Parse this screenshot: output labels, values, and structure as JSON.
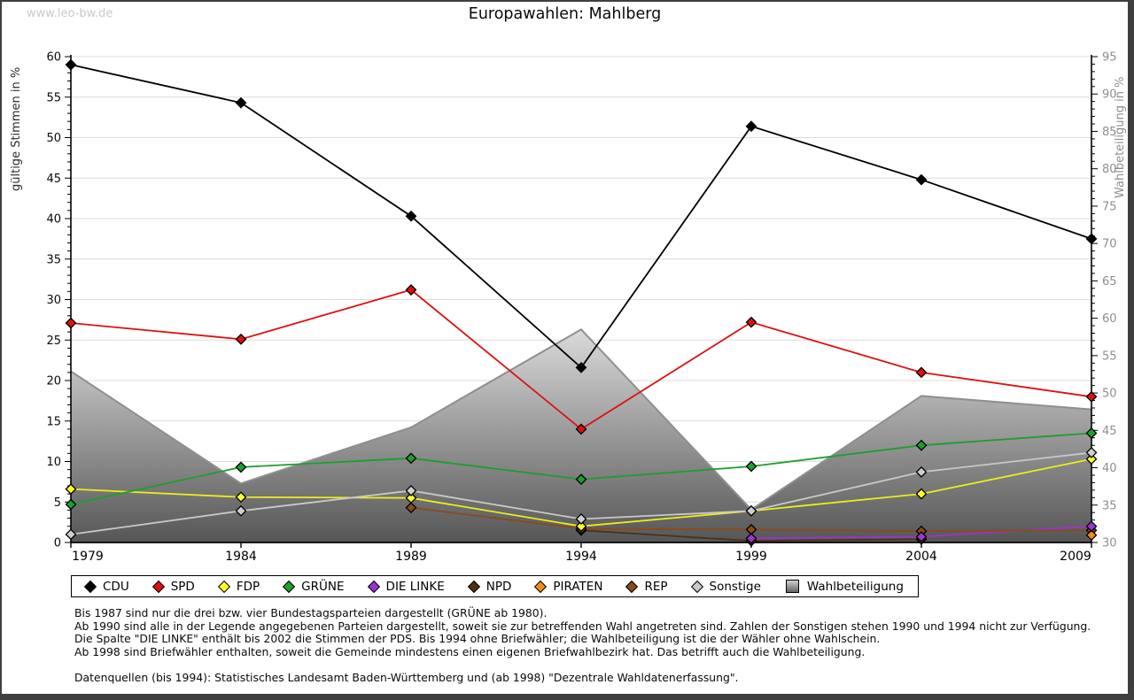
{
  "watermark": "www.leo-bw.de",
  "title": "Europawahlen: Mahlberg",
  "axes": {
    "left_title": "gültige Stimmen in %",
    "right_title": "Wahlbeteiligung in %"
  },
  "legend": [
    {
      "id": "cdu",
      "label": "CDU",
      "color": "#000000",
      "shape": "diamond"
    },
    {
      "id": "spd",
      "label": "SPD",
      "color": "#dd1111",
      "shape": "diamond"
    },
    {
      "id": "fdp",
      "label": "FDP",
      "color": "#ffff33",
      "shape": "diamond"
    },
    {
      "id": "gruene",
      "label": "GRÜNE",
      "color": "#1d9e2e",
      "shape": "diamond"
    },
    {
      "id": "linke",
      "label": "DIE LINKE",
      "color": "#9b35cc",
      "shape": "diamond"
    },
    {
      "id": "npd",
      "label": "NPD",
      "color": "#4e3015",
      "shape": "diamond"
    },
    {
      "id": "piraten",
      "label": "PIRATEN",
      "color": "#ef8e1b",
      "shape": "diamond"
    },
    {
      "id": "rep",
      "label": "REP",
      "color": "#8a4a1b",
      "shape": "diamond"
    },
    {
      "id": "sonstige",
      "label": "Sonstige",
      "color": "#c8c8c8",
      "shape": "diamond"
    },
    {
      "id": "wahlbeteiligung",
      "label": "Wahlbeteiligung",
      "color": "#9a9a9a",
      "shape": "square"
    }
  ],
  "chart_data": {
    "type": "line",
    "x": [
      1979,
      1984,
      1989,
      1994,
      1999,
      2004,
      2009
    ],
    "left_axis": {
      "label": "gültige Stimmen in %",
      "min": 0,
      "max": 60,
      "step": 5
    },
    "right_axis": {
      "label": "Wahlbeteiligung in %",
      "min": 30,
      "max": 95,
      "step": 5
    },
    "grid": true,
    "series": [
      {
        "id": "wahlbeteiligung",
        "name": "Wahlbeteiligung",
        "type": "area",
        "axis": "right",
        "color": "#9a9a9a",
        "values": [
          52.9,
          37.9,
          45.4,
          58.5,
          34.4,
          49.6,
          47.8
        ]
      },
      {
        "id": "cdu",
        "name": "CDU",
        "type": "line",
        "axis": "left",
        "color": "#000000",
        "values": [
          59.0,
          54.3,
          40.3,
          21.6,
          51.4,
          44.8,
          37.5
        ]
      },
      {
        "id": "spd",
        "name": "SPD",
        "type": "line",
        "axis": "left",
        "color": "#dd1111",
        "values": [
          27.1,
          25.1,
          31.2,
          14.0,
          27.2,
          21.0,
          18.0
        ]
      },
      {
        "id": "fdp",
        "name": "FDP",
        "type": "line",
        "axis": "left",
        "color": "#eded1c",
        "values": [
          6.6,
          5.6,
          5.5,
          2.0,
          3.9,
          6.0,
          10.3
        ]
      },
      {
        "id": "gruene",
        "name": "GRÜNE",
        "type": "line",
        "axis": "left",
        "color": "#1d9e2e",
        "values": [
          4.7,
          9.3,
          10.4,
          7.8,
          9.4,
          12.0,
          13.5
        ]
      },
      {
        "id": "linke",
        "name": "DIE LINKE",
        "type": "line",
        "axis": "left",
        "color": "#9b35cc",
        "values": [
          null,
          null,
          null,
          null,
          0.5,
          0.7,
          2.0
        ]
      },
      {
        "id": "npd",
        "name": "NPD",
        "type": "line",
        "axis": "left",
        "color": "#4e3015",
        "values": [
          null,
          null,
          null,
          1.5,
          0.2,
          0.4,
          null
        ]
      },
      {
        "id": "piraten",
        "name": "PIRATEN",
        "type": "line",
        "axis": "left",
        "color": "#ef8e1b",
        "values": [
          null,
          null,
          null,
          null,
          null,
          null,
          0.9
        ]
      },
      {
        "id": "rep",
        "name": "REP",
        "type": "line",
        "axis": "left",
        "color": "#8a4a1b",
        "values": [
          null,
          null,
          4.3,
          1.7,
          1.6,
          1.4,
          1.5
        ]
      },
      {
        "id": "sonstige",
        "name": "Sonstige",
        "type": "line",
        "axis": "left",
        "color": "#c8c8c8",
        "values": [
          1.0,
          3.9,
          6.4,
          2.9,
          3.9,
          8.7,
          11.1
        ]
      }
    ]
  },
  "footnotes": [
    "Bis 1987 sind nur die drei bzw. vier Bundestagsparteien dargestellt (GRÜNE ab 1980).",
    "Ab 1990 sind alle in der Legende angegebenen Parteien dargestellt, soweit sie zur betreffenden Wahl angetreten sind. Zahlen der Sonstigen stehen 1990 und 1994 nicht zur Verfügung.",
    "Die Spalte \"DIE LINKE\" enthält bis 2002 die Stimmen der PDS. Bis 1994 ohne Briefwähler; die Wahlbeteiligung ist die der Wähler ohne Wahlschein.",
    "Ab 1998 sind Briefwähler enthalten, soweit die Gemeinde mindestens einen eigenen Briefwahlbezirk hat. Das betrifft auch die Wahlbeteiligung.",
    "",
    "Datenquellen (bis 1994): Statistisches Landesamt Baden-Württemberg und (ab 1998) \"Dezentrale Wahldatenerfassung\"."
  ]
}
